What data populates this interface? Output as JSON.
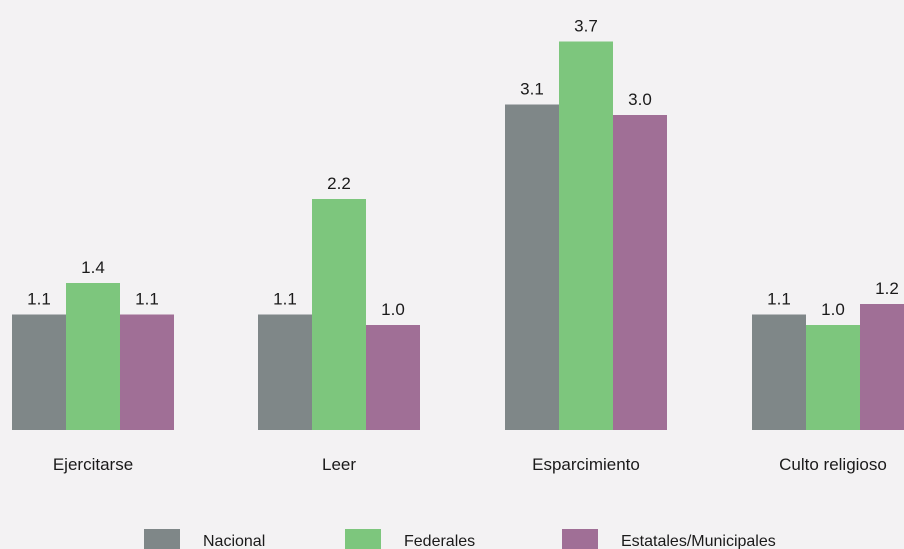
{
  "chart_data": {
    "type": "bar",
    "title": "",
    "xlabel": "",
    "ylabel": "",
    "categories": [
      "Ejercitarse",
      "Leer",
      "Esparcimiento",
      "Culto religioso"
    ],
    "series": [
      {
        "name": "Nacional",
        "color": "#7f8788",
        "values": [
          1.1,
          1.1,
          3.1,
          1.1
        ],
        "labels": [
          "1.1",
          "1.1",
          "3.1",
          "1.1"
        ]
      },
      {
        "name": "Federales",
        "color": "#7dc67d",
        "values": [
          1.4,
          2.2,
          3.7,
          1.0
        ],
        "labels": [
          "1.4",
          "2.2",
          "3.7",
          "1.0"
        ]
      },
      {
        "name": "Estatales/Municipales",
        "color": "#a06f96",
        "values": [
          1.1,
          1.0,
          3.0,
          1.2
        ],
        "labels": [
          "1.1",
          "1.0",
          "3.0",
          "1.2"
        ]
      }
    ],
    "ylim": [
      0,
      4.0
    ],
    "grid": false,
    "legend_position": "bottom"
  }
}
